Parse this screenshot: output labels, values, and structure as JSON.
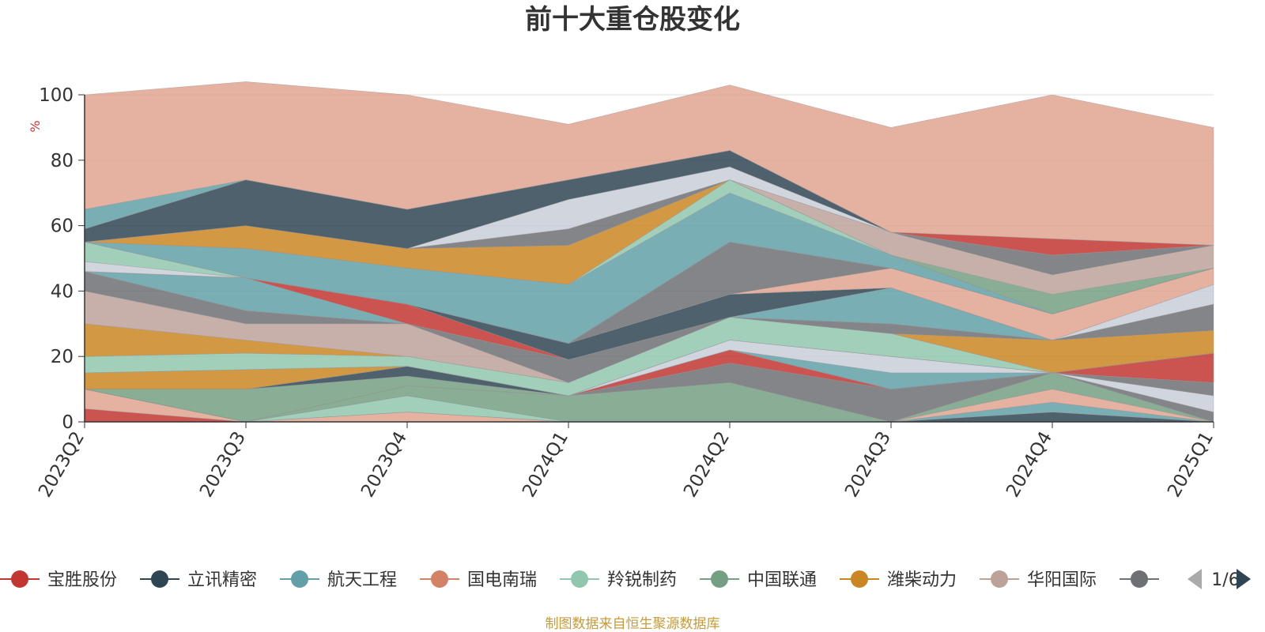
{
  "chart_data": {
    "type": "area",
    "stacked": true,
    "title": "前十大重仓股变化",
    "ylabel": "%",
    "ylim": [
      0,
      100
    ],
    "y_ticks": [
      0,
      20,
      40,
      60,
      80,
      100
    ],
    "grid": true,
    "legend_position": "bottom",
    "legend_page": "1/6",
    "source_note": "制图数据来自恒生聚源数据库",
    "categories": [
      "2023Q2",
      "2023Q3",
      "2023Q4",
      "2024Q1",
      "2024Q2",
      "2024Q3",
      "2024Q4",
      "2025Q1"
    ],
    "series": [
      {
        "name": "宝胜股份",
        "color": "#c23531",
        "values": [
          4,
          0,
          0,
          0,
          0,
          0,
          0,
          0
        ]
      },
      {
        "name": "",
        "color": "#e0a38f",
        "values": [
          6,
          0,
          3,
          0,
          0,
          0,
          0,
          0
        ]
      },
      {
        "name": "",
        "color": "#c9ced8",
        "values": [
          0,
          0,
          0,
          0,
          0,
          0,
          0,
          0
        ]
      },
      {
        "name": "",
        "color": "#2f4554",
        "values": [
          0,
          0,
          0,
          0,
          0,
          0,
          3,
          0
        ]
      },
      {
        "name": "",
        "color": "#61a0a8",
        "values": [
          0,
          0,
          0,
          0,
          0,
          0,
          3,
          0
        ]
      },
      {
        "name": "",
        "color": "#91c7ae",
        "values": [
          0,
          0,
          5,
          0,
          0,
          0,
          0,
          0
        ]
      },
      {
        "name": "",
        "color": "#e0a38f",
        "values": [
          0,
          0,
          0,
          0,
          0,
          0,
          4,
          0
        ]
      },
      {
        "name": "",
        "color": "#749f83",
        "values": [
          0,
          0,
          3,
          8,
          12,
          0,
          5,
          0
        ]
      },
      {
        "name": "",
        "color": "#6e7074",
        "values": [
          0,
          0,
          0,
          0,
          6,
          10,
          0,
          3
        ]
      },
      {
        "name": "",
        "color": "#c9ced8",
        "values": [
          0,
          0,
          0,
          0,
          0,
          0,
          0,
          5
        ]
      },
      {
        "name": "",
        "color": "#6e7074",
        "values": [
          0,
          0,
          0,
          0,
          0,
          0,
          0,
          4
        ]
      },
      {
        "name": "",
        "color": "#c23531",
        "values": [
          0,
          0,
          0,
          0,
          4,
          0,
          0,
          9
        ]
      },
      {
        "name": "",
        "color": "#749f83",
        "values": [
          0,
          10,
          3,
          0,
          0,
          0,
          0,
          0
        ]
      },
      {
        "name": "",
        "color": "#2f4554",
        "values": [
          0,
          0,
          0,
          0,
          0,
          0,
          0,
          0
        ]
      },
      {
        "name": "",
        "color": "#2f4554",
        "values": [
          0,
          0,
          3,
          0,
          0,
          0,
          0,
          0
        ]
      },
      {
        "name": "",
        "color": "#749f83",
        "values": [
          0,
          0,
          0,
          0,
          0,
          0,
          0,
          0
        ]
      },
      {
        "name": "",
        "color": "#61a0a8",
        "values": [
          0,
          0,
          0,
          0,
          0,
          5,
          0,
          0
        ]
      },
      {
        "name": "",
        "color": "#c9ced8",
        "values": [
          0,
          0,
          0,
          0,
          3,
          5,
          0,
          0
        ]
      },
      {
        "name": "",
        "color": "#ca8622",
        "values": [
          5,
          6,
          0,
          0,
          0,
          0,
          0,
          0
        ]
      },
      {
        "name": "",
        "color": "#bda29a",
        "values": [
          0,
          0,
          0,
          0,
          0,
          0,
          0,
          0
        ]
      },
      {
        "name": "",
        "color": "#91c7ae",
        "values": [
          5,
          5,
          3,
          4,
          7,
          7,
          0,
          0
        ]
      },
      {
        "name": "",
        "color": "#ca8622",
        "values": [
          10,
          4,
          0,
          0,
          0,
          0,
          10,
          7
        ]
      },
      {
        "name": "",
        "color": "#bda29a",
        "values": [
          10,
          5,
          10,
          0,
          0,
          0,
          0,
          0
        ]
      },
      {
        "name": "",
        "color": "#6e7074",
        "values": [
          6,
          4,
          0,
          7,
          0,
          3,
          0,
          0
        ]
      },
      {
        "name": "",
        "color": "#c9ced8",
        "values": [
          0,
          0,
          0,
          0,
          0,
          0,
          0,
          0
        ]
      },
      {
        "name": "",
        "color": "#61a0a8",
        "values": [
          0,
          10,
          0,
          0,
          0,
          11,
          0,
          0
        ]
      },
      {
        "name": "",
        "color": "#c23531",
        "values": [
          0,
          0,
          6,
          0,
          0,
          0,
          0,
          0
        ]
      },
      {
        "name": "",
        "color": "#2f4554",
        "values": [
          0,
          0,
          0,
          5,
          7,
          0,
          0,
          0
        ]
      },
      {
        "name": "",
        "color": "#61a0a8",
        "values": [
          0,
          0,
          0,
          0,
          0,
          0,
          0,
          0
        ]
      },
      {
        "name": "",
        "color": "#6e7074",
        "values": [
          0,
          0,
          0,
          0,
          0,
          0,
          0,
          8
        ]
      },
      {
        "name": "",
        "color": "#c9ced8",
        "values": [
          0,
          0,
          0,
          0,
          0,
          0,
          0,
          6
        ]
      },
      {
        "name": "",
        "color": "#e0a38f",
        "values": [
          0,
          0,
          0,
          0,
          0,
          6,
          8,
          5
        ]
      },
      {
        "name": "",
        "color": "#6e7074",
        "values": [
          0,
          0,
          0,
          0,
          16,
          0,
          0,
          0
        ]
      },
      {
        "name": "",
        "color": "#c9ced8",
        "values": [
          3,
          0,
          0,
          0,
          0,
          0,
          0,
          0
        ]
      },
      {
        "name": "",
        "color": "#91c7ae",
        "values": [
          6,
          0,
          0,
          0,
          0,
          0,
          0,
          0
        ]
      },
      {
        "name": "",
        "color": "#749f83",
        "values": [
          0,
          0,
          0,
          0,
          0,
          0,
          0,
          0
        ]
      },
      {
        "name": "",
        "color": "#61a0a8",
        "values": [
          0,
          9,
          11,
          18,
          15,
          4,
          0,
          0
        ]
      },
      {
        "name": "",
        "color": "#91c7ae",
        "values": [
          0,
          0,
          0,
          0,
          4,
          0,
          0,
          0
        ]
      },
      {
        "name": "",
        "color": "#ca8622",
        "values": [
          0,
          7,
          6,
          12,
          0,
          0,
          0,
          0
        ]
      },
      {
        "name": "",
        "color": "#749f83",
        "values": [
          0,
          0,
          0,
          0,
          0,
          0,
          6,
          0
        ]
      },
      {
        "name": "",
        "color": "#bda29a",
        "values": [
          0,
          0,
          0,
          0,
          0,
          7,
          6,
          7
        ]
      },
      {
        "name": "",
        "color": "#6e7074",
        "values": [
          0,
          0,
          0,
          5,
          0,
          0,
          0,
          0
        ]
      },
      {
        "name": "",
        "color": "#c9ced8",
        "values": [
          0,
          0,
          0,
          9,
          4,
          0,
          0,
          0
        ]
      },
      {
        "name": "",
        "color": "#2f4554",
        "values": [
          4,
          14,
          12,
          6,
          5,
          0,
          0,
          0
        ]
      },
      {
        "name": "",
        "color": "#6e7074",
        "values": [
          0,
          0,
          0,
          0,
          0,
          0,
          6,
          0
        ]
      },
      {
        "name": "",
        "color": "#c23531",
        "values": [
          0,
          0,
          0,
          0,
          0,
          0,
          5,
          0
        ]
      },
      {
        "name": "",
        "color": "#61a0a8",
        "values": [
          6,
          0,
          0,
          0,
          0,
          0,
          0,
          0
        ]
      },
      {
        "name": "",
        "color": "#e0a38f",
        "values": [
          35,
          30,
          35,
          17,
          20,
          32,
          44,
          36
        ]
      }
    ],
    "legend": [
      {
        "name": "宝胜股份",
        "color": "#c23531"
      },
      {
        "name": "立讯精密",
        "color": "#2f4554"
      },
      {
        "name": "航天工程",
        "color": "#61a0a8"
      },
      {
        "name": "国电南瑞",
        "color": "#d48265"
      },
      {
        "name": "羚锐制药",
        "color": "#91c7ae"
      },
      {
        "name": "中国联通",
        "color": "#749f83"
      },
      {
        "name": "潍柴动力",
        "color": "#ca8622"
      },
      {
        "name": "华阳国际",
        "color": "#bda29a"
      },
      {
        "name": "",
        "color": "#6e7074"
      }
    ]
  }
}
